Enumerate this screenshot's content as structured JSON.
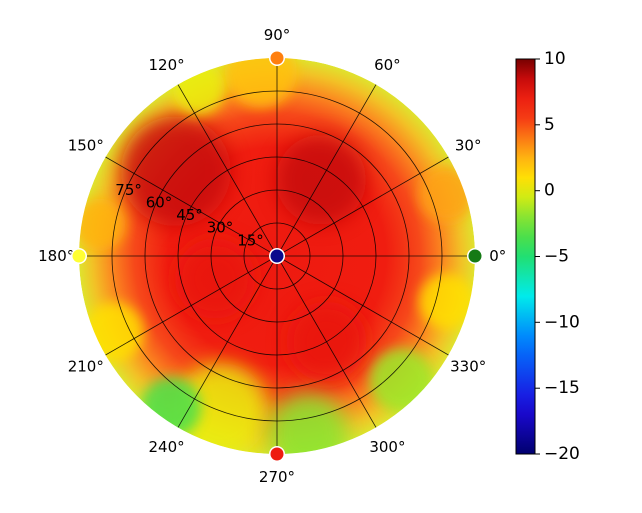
{
  "chart_data": {
    "type": "heatmap",
    "projection": "polar",
    "title": "",
    "angle_ticks": [
      {
        "value": 0,
        "label": "0°"
      },
      {
        "value": 30,
        "label": "30°"
      },
      {
        "value": 60,
        "label": "60°"
      },
      {
        "value": 90,
        "label": "90°"
      },
      {
        "value": 120,
        "label": "120°"
      },
      {
        "value": 150,
        "label": "150°"
      },
      {
        "value": 180,
        "label": "180°"
      },
      {
        "value": 210,
        "label": "210°"
      },
      {
        "value": 240,
        "label": "240°"
      },
      {
        "value": 270,
        "label": "270°"
      },
      {
        "value": 300,
        "label": "300°"
      },
      {
        "value": 330,
        "label": "330°"
      }
    ],
    "radial_ticks": [
      {
        "value": 15,
        "label": "15°"
      },
      {
        "value": 30,
        "label": "30°"
      },
      {
        "value": 45,
        "label": "45°"
      },
      {
        "value": 60,
        "label": "60°"
      },
      {
        "value": 75,
        "label": "75°"
      }
    ],
    "radial_range": [
      0,
      90
    ],
    "grid": true,
    "colorbar": {
      "colormap": "jet-like (navy-blue-cyan-green-yellow-orange-red-darkred)",
      "range": [
        -20,
        10
      ],
      "ticks": [
        {
          "value": 10,
          "label": "10"
        },
        {
          "value": 5,
          "label": "5"
        },
        {
          "value": 0,
          "label": "0"
        },
        {
          "value": -5,
          "label": "−5"
        },
        {
          "value": -10,
          "label": "−10"
        },
        {
          "value": -15,
          "label": "−15"
        },
        {
          "value": -20,
          "label": "−20"
        }
      ]
    },
    "field_summary": [
      {
        "region": "center (elevation 0–60°)",
        "value_range": [
          5,
          8
        ]
      },
      {
        "region": "upper-left mid ring (105–170°, 45–75°)",
        "value_range": [
          6,
          9
        ]
      },
      {
        "region": "outer ring upper half",
        "value_range": [
          0,
          5
        ]
      },
      {
        "region": "outer ring lower (220–320°, 75–90°)",
        "value_range": [
          -5,
          0
        ]
      }
    ],
    "markers": [
      {
        "name": "0° edge marker",
        "angle": 0,
        "radius": 90,
        "color": "#157a15"
      },
      {
        "name": "90° edge marker",
        "angle": 90,
        "radius": 90,
        "color": "#ff7f0e"
      },
      {
        "name": "180° edge marker",
        "angle": 180,
        "radius": 90,
        "color": "#ffff33"
      },
      {
        "name": "270° edge marker",
        "angle": 270,
        "radius": 90,
        "color": "#ee1c10"
      },
      {
        "name": "center marker",
        "angle": 0,
        "radius": 0,
        "color": "#0a0a8c"
      }
    ]
  }
}
